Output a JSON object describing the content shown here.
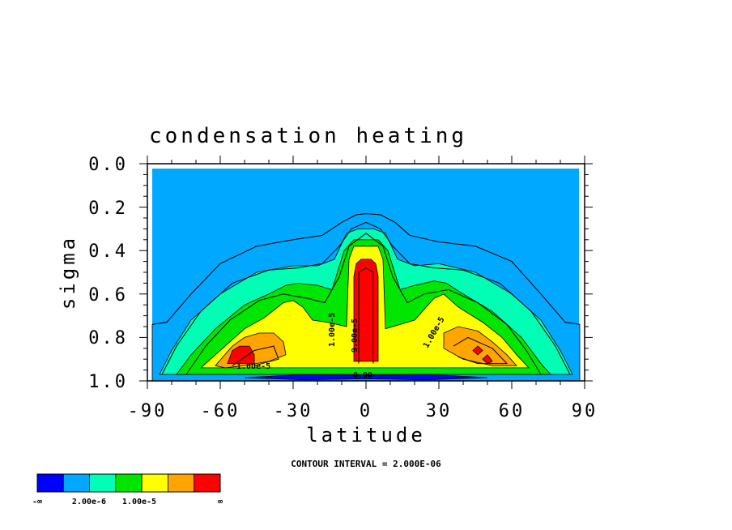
{
  "chart_data": {
    "type": "contour",
    "title": "condensation heating",
    "xlabel": "latitude",
    "ylabel": "sigma",
    "xlim": [
      -90,
      90
    ],
    "ylim": [
      1.0,
      0.0
    ],
    "x_ticks": [
      "-90",
      "-60",
      "-30",
      "0",
      "30",
      "60",
      "90"
    ],
    "y_ticks": [
      "0.0",
      "0.2",
      "0.4",
      "0.6",
      "0.8",
      "1.0"
    ],
    "contour_interval_note": "CONTOUR INTERVAL = 2.000E-06",
    "contour_line_labels": [
      "1.00e-5",
      "9.00e-5",
      "1.00e-5",
      "1.00e-5",
      "0.00"
    ],
    "colorbar": {
      "colors": [
        "#0000ff",
        "#00a9ff",
        "#00ffb4",
        "#00e600",
        "#ffff00",
        "#ffa500",
        "#ff0000"
      ],
      "labels": [
        "-∞",
        "2.00e-6",
        "1.00e-5",
        "∞"
      ]
    },
    "fill_regions": [
      {
        "level": 1,
        "points": [
          [
            -88,
            1.0
          ],
          [
            -88,
            0.74
          ],
          [
            -82,
            0.73
          ],
          [
            -72,
            0.6
          ],
          [
            -60,
            0.46
          ],
          [
            -45,
            0.38
          ],
          [
            -30,
            0.35
          ],
          [
            -18,
            0.33
          ],
          [
            -10,
            0.27
          ],
          [
            -4,
            0.235
          ],
          [
            0,
            0.23
          ],
          [
            6,
            0.235
          ],
          [
            12,
            0.27
          ],
          [
            18,
            0.33
          ],
          [
            30,
            0.36
          ],
          [
            45,
            0.38
          ],
          [
            60,
            0.45
          ],
          [
            72,
            0.6
          ],
          [
            82,
            0.73
          ],
          [
            88,
            0.74
          ],
          [
            88,
            1.0
          ]
        ]
      },
      {
        "level": 2,
        "points": [
          [
            -85,
            0.97
          ],
          [
            -80,
            0.86
          ],
          [
            -72,
            0.72
          ],
          [
            -60,
            0.6
          ],
          [
            -45,
            0.5
          ],
          [
            -30,
            0.47
          ],
          [
            -20,
            0.47
          ],
          [
            -13,
            0.44
          ],
          [
            -8,
            0.32
          ],
          [
            -3,
            0.3
          ],
          [
            3,
            0.3
          ],
          [
            8,
            0.32
          ],
          [
            13,
            0.44
          ],
          [
            20,
            0.47
          ],
          [
            30,
            0.46
          ],
          [
            45,
            0.5
          ],
          [
            60,
            0.6
          ],
          [
            72,
            0.72
          ],
          [
            80,
            0.86
          ],
          [
            85,
            0.97
          ]
        ]
      },
      {
        "level": 3,
        "points": [
          [
            -78,
            0.97
          ],
          [
            -72,
            0.88
          ],
          [
            -62,
            0.76
          ],
          [
            -50,
            0.65
          ],
          [
            -40,
            0.6
          ],
          [
            -33,
            0.56
          ],
          [
            -28,
            0.55
          ],
          [
            -20,
            0.56
          ],
          [
            -14,
            0.58
          ],
          [
            -9,
            0.4
          ],
          [
            -5,
            0.35
          ],
          [
            5,
            0.35
          ],
          [
            9,
            0.4
          ],
          [
            14,
            0.58
          ],
          [
            20,
            0.56
          ],
          [
            28,
            0.54
          ],
          [
            33,
            0.55
          ],
          [
            40,
            0.6
          ],
          [
            52,
            0.68
          ],
          [
            64,
            0.8
          ],
          [
            72,
            0.92
          ],
          [
            76,
            0.97
          ]
        ]
      },
      {
        "level": 4,
        "points": [
          [
            -68,
            0.94
          ],
          [
            -60,
            0.86
          ],
          [
            -50,
            0.76
          ],
          [
            -42,
            0.71
          ],
          [
            -34,
            0.64
          ],
          [
            -30,
            0.63
          ],
          [
            -26,
            0.66
          ],
          [
            -22,
            0.72
          ],
          [
            -16,
            0.73
          ],
          [
            -8,
            0.75
          ],
          [
            -7,
            0.44
          ],
          [
            -5,
            0.38
          ],
          [
            5,
            0.38
          ],
          [
            7,
            0.44
          ],
          [
            8,
            0.76
          ],
          [
            20,
            0.72
          ],
          [
            28,
            0.62
          ],
          [
            32,
            0.6
          ],
          [
            38,
            0.66
          ],
          [
            48,
            0.73
          ],
          [
            56,
            0.8
          ],
          [
            62,
            0.88
          ],
          [
            67,
            0.94
          ]
        ]
      },
      {
        "level": 5,
        "points": [
          [
            -62,
            0.93
          ],
          [
            -55,
            0.84
          ],
          [
            -50,
            0.8
          ],
          [
            -44,
            0.78
          ],
          [
            -38,
            0.78
          ],
          [
            -34,
            0.82
          ],
          [
            -33,
            0.88
          ],
          [
            -40,
            0.91
          ],
          [
            -50,
            0.93
          ],
          [
            -58,
            0.94
          ]
        ]
      },
      {
        "level": 5,
        "points": [
          [
            32,
            0.78
          ],
          [
            38,
            0.75
          ],
          [
            46,
            0.77
          ],
          [
            52,
            0.82
          ],
          [
            58,
            0.88
          ],
          [
            62,
            0.93
          ],
          [
            52,
            0.93
          ],
          [
            40,
            0.9
          ],
          [
            32,
            0.85
          ]
        ]
      },
      {
        "level": 6,
        "points": [
          [
            -5,
            0.91
          ],
          [
            -5,
            0.52
          ],
          [
            -4,
            0.46
          ],
          [
            -2,
            0.44
          ],
          [
            2,
            0.44
          ],
          [
            4,
            0.46
          ],
          [
            5,
            0.52
          ],
          [
            5,
            0.91
          ]
        ]
      },
      {
        "level": 6,
        "points": [
          [
            -57,
            0.92
          ],
          [
            -55,
            0.86
          ],
          [
            -52,
            0.84
          ],
          [
            -48,
            0.84
          ],
          [
            -46,
            0.88
          ],
          [
            -46,
            0.92
          ]
        ]
      },
      {
        "level": 6,
        "points": [
          [
            44,
            0.86
          ],
          [
            46,
            0.84
          ],
          [
            48,
            0.86
          ],
          [
            46,
            0.88
          ]
        ]
      },
      {
        "level": 6,
        "points": [
          [
            48,
            0.9
          ],
          [
            50,
            0.88
          ],
          [
            52,
            0.91
          ],
          [
            50,
            0.92
          ]
        ]
      },
      {
        "level": 0,
        "points": [
          [
            -50,
            0.985
          ],
          [
            -25,
            0.97
          ],
          [
            0,
            0.975
          ],
          [
            25,
            0.97
          ],
          [
            50,
            0.985
          ],
          [
            25,
            0.995
          ],
          [
            0,
            0.99
          ],
          [
            -25,
            0.995
          ]
        ]
      }
    ],
    "line_contours": [
      [
        [
          -88,
          0.74
        ],
        [
          -82,
          0.73
        ],
        [
          -72,
          0.6
        ],
        [
          -60,
          0.46
        ],
        [
          -45,
          0.38
        ],
        [
          -30,
          0.35
        ],
        [
          -18,
          0.33
        ],
        [
          -10,
          0.27
        ],
        [
          -4,
          0.235
        ],
        [
          0,
          0.23
        ],
        [
          6,
          0.235
        ],
        [
          12,
          0.27
        ],
        [
          18,
          0.33
        ],
        [
          30,
          0.36
        ],
        [
          45,
          0.38
        ],
        [
          60,
          0.45
        ],
        [
          72,
          0.6
        ],
        [
          82,
          0.73
        ],
        [
          88,
          0.74
        ]
      ],
      [
        [
          -84,
          0.97
        ],
        [
          -78,
          0.84
        ],
        [
          -68,
          0.68
        ],
        [
          -55,
          0.55
        ],
        [
          -40,
          0.49
        ],
        [
          -28,
          0.48
        ],
        [
          -18,
          0.46
        ],
        [
          -11,
          0.38
        ],
        [
          -6,
          0.3
        ],
        [
          0,
          0.27
        ],
        [
          6,
          0.3
        ],
        [
          11,
          0.38
        ],
        [
          18,
          0.46
        ],
        [
          28,
          0.48
        ],
        [
          40,
          0.49
        ],
        [
          55,
          0.55
        ],
        [
          68,
          0.68
        ],
        [
          78,
          0.84
        ],
        [
          84,
          0.97
        ]
      ],
      [
        [
          -74,
          0.97
        ],
        [
          -66,
          0.84
        ],
        [
          -56,
          0.72
        ],
        [
          -44,
          0.63
        ],
        [
          -34,
          0.6
        ],
        [
          -24,
          0.62
        ],
        [
          -17,
          0.64
        ],
        [
          -11,
          0.52
        ],
        [
          -7,
          0.38
        ],
        [
          0,
          0.32
        ],
        [
          7,
          0.38
        ],
        [
          11,
          0.52
        ],
        [
          17,
          0.64
        ],
        [
          24,
          0.6
        ],
        [
          34,
          0.58
        ],
        [
          46,
          0.64
        ],
        [
          58,
          0.74
        ],
        [
          66,
          0.86
        ],
        [
          72,
          0.97
        ]
      ],
      [
        [
          -3,
          0.92
        ],
        [
          -3,
          0.5
        ],
        [
          0,
          0.48
        ],
        [
          3,
          0.5
        ],
        [
          3,
          0.92
        ]
      ],
      [
        [
          -55,
          0.93
        ],
        [
          -46,
          0.86
        ],
        [
          -38,
          0.84
        ],
        [
          -36,
          0.9
        ],
        [
          -46,
          0.93
        ]
      ],
      [
        [
          36,
          0.84
        ],
        [
          42,
          0.8
        ],
        [
          52,
          0.85
        ],
        [
          58,
          0.92
        ],
        [
          46,
          0.92
        ],
        [
          38,
          0.89
        ]
      ]
    ]
  }
}
